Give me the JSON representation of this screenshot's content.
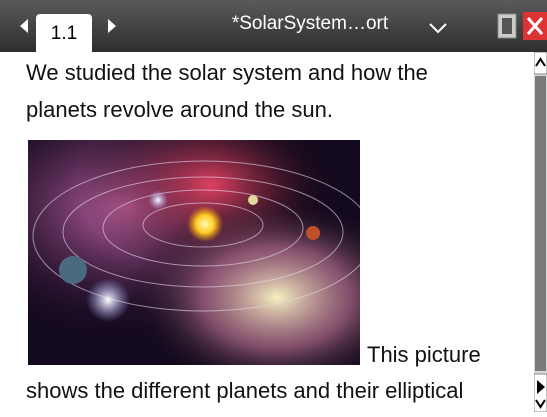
{
  "tab": {
    "label": "1.1"
  },
  "header": {
    "title": "*SolarSystem…ort"
  },
  "document": {
    "lines": [
      "We studied the solar system and how the",
      "planets revolve around the sun.",
      "This picture",
      "shows the different planets and their elliptical"
    ]
  }
}
